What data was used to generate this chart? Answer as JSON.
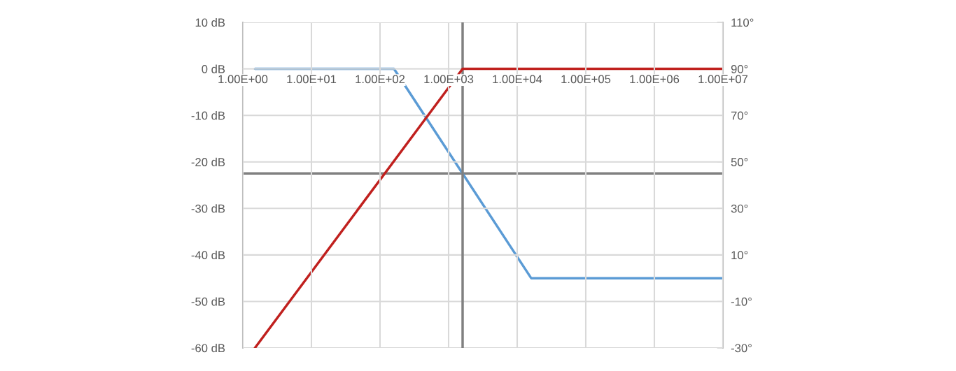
{
  "chart_data": {
    "type": "line",
    "log": "x",
    "grid": true,
    "xlim": [
      1,
      10000000
    ],
    "xticks": [
      {
        "value": 1,
        "label": "1.00E+00"
      },
      {
        "value": 10,
        "label": "1.00E+01"
      },
      {
        "value": 100,
        "label": "1.00E+02"
      },
      {
        "value": 1000,
        "label": "1.00E+03"
      },
      {
        "value": 10000,
        "label": "1.00E+04"
      },
      {
        "value": 100000,
        "label": "1.00E+05"
      },
      {
        "value": 1000000,
        "label": "1.00E+06"
      },
      {
        "value": 10000000,
        "label": "1.00E+07"
      }
    ],
    "ylim": [
      -60,
      10
    ],
    "yticks": [
      {
        "value": -60,
        "label": "-60 dB"
      },
      {
        "value": -50,
        "label": "-50 dB"
      },
      {
        "value": -40,
        "label": "-40 dB"
      },
      {
        "value": -30,
        "label": "-30 dB"
      },
      {
        "value": -20,
        "label": "-20 dB"
      },
      {
        "value": -10,
        "label": "-10 dB"
      },
      {
        "value": 0,
        "label": "0 dB"
      },
      {
        "value": 10,
        "label": "10 dB"
      }
    ],
    "y2lim": [
      -30,
      110
    ],
    "y2ticks": [
      {
        "value": -30,
        "label": "-30°"
      },
      {
        "value": -10,
        "label": "-10°"
      },
      {
        "value": 10,
        "label": "10°"
      },
      {
        "value": 30,
        "label": "30°"
      },
      {
        "value": 50,
        "label": "50°"
      },
      {
        "value": 70,
        "label": "70°"
      },
      {
        "value": 90,
        "label": "90°"
      },
      {
        "value": 110,
        "label": "110°"
      }
    ],
    "series": [
      {
        "color": "#c0201e",
        "x": [
          1.5,
          1600,
          10000000
        ],
        "values": [
          -60,
          0,
          0
        ]
      },
      {
        "color": "#5b9bd5",
        "axis": "y2",
        "x": [
          1.5,
          160,
          16000,
          10000000
        ],
        "values": [
          90,
          90,
          0,
          0
        ]
      }
    ],
    "ref_lines": [
      {
        "axis": "x",
        "value": 1600,
        "color": "#808080"
      },
      {
        "axis": "y2",
        "value": 45,
        "color": "#808080"
      }
    ]
  }
}
